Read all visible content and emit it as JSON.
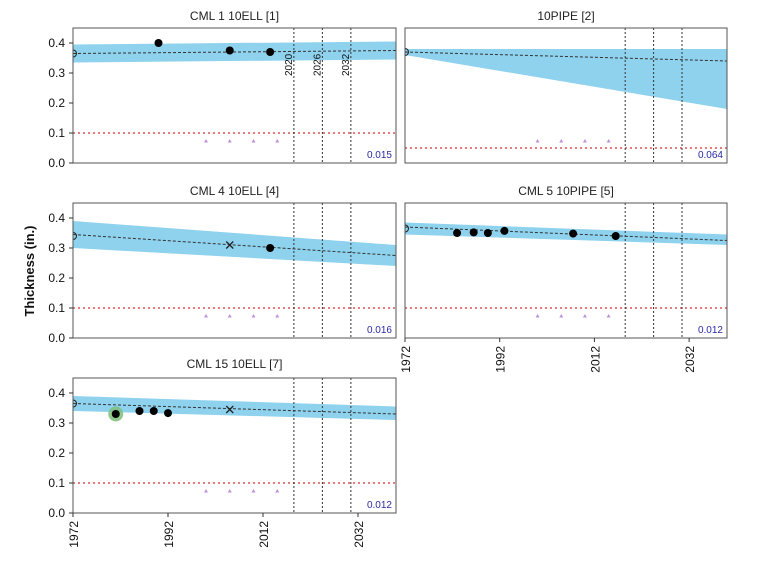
{
  "figure": {
    "ylabel": "Thickness (in.)",
    "x_ticks": [
      "1972",
      "1992",
      "2012",
      "2032"
    ],
    "y_ticks": [
      "0.0",
      "0.1",
      "0.2",
      "0.3",
      "0.4"
    ],
    "colors": {
      "band": "#8ed2ee",
      "trend": "#333333",
      "retire": "#e05050",
      "vline": "#333333",
      "markers": "#c090d8",
      "points": "#000000",
      "first_point_halo": "#7ec07a",
      "corr_rate": "#2a2aa8"
    }
  },
  "chart_data": [
    {
      "type": "scatter",
      "title": "CML 1 10ELL [1]",
      "xlim": [
        1972,
        2040
      ],
      "ylim": [
        0,
        0.45
      ],
      "points": [
        {
          "x": 1990,
          "y": 0.4
        },
        {
          "x": 2005,
          "y": 0.375
        },
        {
          "x": 2013.5,
          "y": 0.37
        }
      ],
      "crosses": [],
      "trend": {
        "x0": 1972,
        "y0": 0.365,
        "x1": 2040,
        "y1": 0.375
      },
      "band": {
        "upper": [
          0.395,
          0.405
        ],
        "lower": [
          0.335,
          0.345
        ]
      },
      "retirement_thickness": 0.1,
      "vlines": [
        {
          "x": 2018.5,
          "label": "2020"
        },
        {
          "x": 2024.5,
          "label": "2026"
        },
        {
          "x": 2030.5,
          "label": "2032"
        }
      ],
      "minor_markers": [
        2000,
        2005,
        2010,
        2015
      ],
      "corrosion_rate": "0.015",
      "start_marker": 0.365,
      "first_point_highlight": false
    },
    {
      "type": "scatter",
      "title": "10PIPE [2]",
      "xlim": [
        1972,
        2040
      ],
      "ylim": [
        0,
        0.45
      ],
      "points": [],
      "crosses": [],
      "trend": {
        "x0": 1972,
        "y0": 0.37,
        "x1": 2040,
        "y1": 0.34
      },
      "band": {
        "upper": [
          0.38,
          0.38
        ],
        "lower": [
          0.36,
          0.18
        ]
      },
      "retirement_thickness": 0.05,
      "vlines": [
        {
          "x": 2018.5,
          "label": ""
        },
        {
          "x": 2024.5,
          "label": ""
        },
        {
          "x": 2030.5,
          "label": ""
        }
      ],
      "minor_markers": [
        2000,
        2005,
        2010,
        2015
      ],
      "corrosion_rate": "0.064",
      "start_marker": 0.37,
      "first_point_highlight": false
    },
    {
      "type": "scatter",
      "title": "CML 4 10ELL [4]",
      "xlim": [
        1972,
        2040
      ],
      "ylim": [
        0,
        0.45
      ],
      "points": [
        {
          "x": 2013.5,
          "y": 0.3
        }
      ],
      "crosses": [
        {
          "x": 2005,
          "y": 0.31
        }
      ],
      "trend": {
        "x0": 1972,
        "y0": 0.345,
        "x1": 2040,
        "y1": 0.275
      },
      "band": {
        "upper": [
          0.39,
          0.31
        ],
        "lower": [
          0.3,
          0.24
        ]
      },
      "retirement_thickness": 0.1,
      "vlines": [
        {
          "x": 2018.5,
          "label": ""
        },
        {
          "x": 2024.5,
          "label": ""
        },
        {
          "x": 2030.5,
          "label": ""
        }
      ],
      "minor_markers": [
        2000,
        2005,
        2010,
        2015
      ],
      "corrosion_rate": "0.016",
      "start_marker": 0.34,
      "first_point_highlight": false
    },
    {
      "type": "scatter",
      "title": "CML 5 10PIPE [5]",
      "xlim": [
        1972,
        2040
      ],
      "ylim": [
        0,
        0.45
      ],
      "points": [
        {
          "x": 1983,
          "y": 0.35
        },
        {
          "x": 1986.5,
          "y": 0.352
        },
        {
          "x": 1989.5,
          "y": 0.35
        },
        {
          "x": 1993,
          "y": 0.357
        },
        {
          "x": 2007.5,
          "y": 0.348
        },
        {
          "x": 2016.5,
          "y": 0.34
        }
      ],
      "crosses": [],
      "trend": {
        "x0": 1972,
        "y0": 0.37,
        "x1": 2040,
        "y1": 0.325
      },
      "band": {
        "upper": [
          0.385,
          0.345
        ],
        "lower": [
          0.345,
          0.31
        ]
      },
      "retirement_thickness": 0.1,
      "vlines": [
        {
          "x": 2018.5,
          "label": ""
        },
        {
          "x": 2024.5,
          "label": ""
        },
        {
          "x": 2030.5,
          "label": ""
        }
      ],
      "minor_markers": [
        2000,
        2005,
        2010,
        2015
      ],
      "corrosion_rate": "0.012",
      "start_marker": 0.365,
      "first_point_highlight": false
    },
    {
      "type": "scatter",
      "title": "CML 15 10ELL [7]",
      "xlim": [
        1972,
        2040
      ],
      "ylim": [
        0,
        0.45
      ],
      "points": [
        {
          "x": 1981,
          "y": 0.33
        },
        {
          "x": 1986,
          "y": 0.34
        },
        {
          "x": 1989,
          "y": 0.34
        },
        {
          "x": 1992,
          "y": 0.333
        }
      ],
      "crosses": [
        {
          "x": 2005,
          "y": 0.345
        }
      ],
      "trend": {
        "x0": 1972,
        "y0": 0.365,
        "x1": 2040,
        "y1": 0.33
      },
      "band": {
        "upper": [
          0.39,
          0.355
        ],
        "lower": [
          0.34,
          0.31
        ]
      },
      "retirement_thickness": 0.1,
      "vlines": [
        {
          "x": 2018.5,
          "label": ""
        },
        {
          "x": 2024.5,
          "label": ""
        },
        {
          "x": 2030.5,
          "label": ""
        }
      ],
      "minor_markers": [
        2000,
        2005,
        2010,
        2015
      ],
      "corrosion_rate": "0.012",
      "start_marker": 0.365,
      "first_point_highlight": true
    }
  ]
}
